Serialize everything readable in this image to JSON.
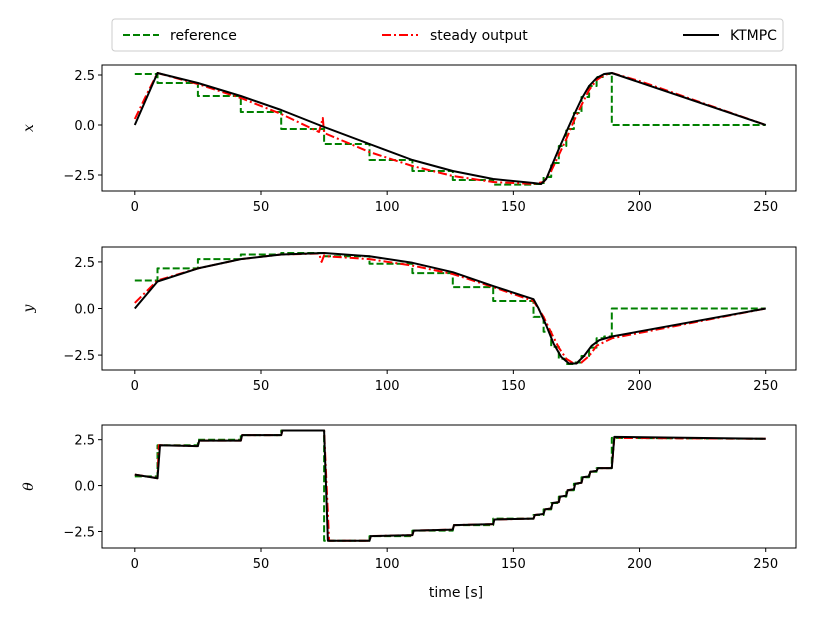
{
  "chart_data": {
    "type": "line",
    "legend": {
      "placement": "top",
      "entries": [
        {
          "label": "reference",
          "color": "#008000",
          "style": "dashed"
        },
        {
          "label": "steady output",
          "color": "#ff0000",
          "style": "dashdot"
        },
        {
          "label": "KTMPC",
          "color": "#000000",
          "style": "solid"
        }
      ]
    },
    "xlabel": "time [s]",
    "xlim": [
      -13,
      262
    ],
    "xticks": [
      0,
      50,
      100,
      150,
      200,
      250
    ],
    "grid": false,
    "subplots": [
      {
        "ylabel": "x",
        "ylim": [
          -3.3,
          3.0
        ],
        "yticks": [
          2.5,
          0.0,
          -2.5
        ],
        "yticklabels": [
          "2.5",
          "0.0",
          "−2.5"
        ],
        "series": [
          {
            "name": "reference",
            "x": [
              0,
              9,
              9,
              25,
              25,
              42,
              42,
              58,
              58,
              75,
              75,
              93,
              93,
              110,
              110,
              126,
              126,
              142,
              142,
              158,
              158,
              162,
              162,
              165,
              165,
              168,
              168,
              171,
              171,
              174,
              174,
              177,
              177,
              180,
              180,
              183,
              183,
              186,
              186,
              189,
              189,
              250
            ],
            "y": [
              2.55,
              2.55,
              2.1,
              2.1,
              1.45,
              1.45,
              0.65,
              0.65,
              -0.2,
              -0.2,
              -0.95,
              -0.95,
              -1.75,
              -1.75,
              -2.3,
              -2.3,
              -2.75,
              -2.75,
              -2.98,
              -2.98,
              -2.95,
              -2.95,
              -2.6,
              -2.6,
              -1.9,
              -1.9,
              -1.05,
              -1.05,
              -0.2,
              -0.2,
              0.6,
              0.6,
              1.4,
              1.4,
              1.95,
              1.95,
              2.4,
              2.4,
              2.55,
              2.55,
              0.0,
              0.0
            ]
          },
          {
            "name": "steady output",
            "x": [
              0,
              5,
              9,
              25,
              42,
              58,
              73,
              74.5,
              75,
              76,
              93,
              110,
              126,
              142,
              158,
              162,
              165,
              168,
              171,
              174,
              177,
              180,
              183,
              186,
              189,
              200,
              250
            ],
            "y": [
              0.3,
              1.6,
              2.6,
              2.05,
              1.35,
              0.55,
              -0.35,
              0.35,
              -0.4,
              -0.45,
              -1.35,
              -2.05,
              -2.55,
              -2.85,
              -2.95,
              -2.85,
              -2.3,
              -1.5,
              -0.7,
              0.2,
              1.0,
              1.75,
              2.25,
              2.5,
              2.6,
              2.2,
              0.0
            ]
          },
          {
            "name": "KTMPC",
            "x": [
              0,
              9,
              25,
              42,
              58,
              75,
              93,
              110,
              126,
              142,
              158,
              161,
              163,
              165,
              168,
              171,
              174,
              177,
              180,
              183,
              186,
              189,
              250
            ],
            "y": [
              0.0,
              2.6,
              2.1,
              1.45,
              0.75,
              -0.1,
              -0.95,
              -1.75,
              -2.3,
              -2.7,
              -2.9,
              -2.95,
              -2.7,
              -2.1,
              -1.2,
              -0.35,
              0.5,
              1.3,
              1.95,
              2.35,
              2.55,
              2.6,
              0.0
            ]
          }
        ]
      },
      {
        "ylabel": "y",
        "ylim": [
          -3.3,
          3.3
        ],
        "yticks": [
          2.5,
          0.0,
          -2.5
        ],
        "yticklabels": [
          "2.5",
          "0.0",
          "−2.5"
        ],
        "series": [
          {
            "name": "reference",
            "x": [
              0,
              9,
              9,
              25,
              25,
              42,
              42,
              58,
              58,
              75,
              75,
              93,
              93,
              110,
              110,
              126,
              126,
              142,
              142,
              158,
              158,
              162,
              162,
              165,
              165,
              168,
              168,
              171,
              171,
              174,
              174,
              177,
              177,
              180,
              180,
              183,
              183,
              186,
              186,
              189,
              189,
              250
            ],
            "y": [
              1.5,
              1.5,
              2.15,
              2.15,
              2.65,
              2.65,
              2.9,
              2.9,
              2.98,
              2.98,
              2.8,
              2.8,
              2.4,
              2.4,
              1.9,
              1.9,
              1.15,
              1.15,
              0.4,
              0.4,
              -0.45,
              -0.45,
              -1.25,
              -1.25,
              -2.05,
              -2.05,
              -2.7,
              -2.7,
              -2.98,
              -2.98,
              -2.9,
              -2.9,
              -2.55,
              -2.55,
              -2.1,
              -2.1,
              -1.6,
              -1.6,
              -1.5,
              -1.5,
              0.0,
              0.0
            ]
          },
          {
            "name": "steady output",
            "x": [
              0,
              9,
              25,
              42,
              58,
              73,
              74,
              75,
              76,
              93,
              110,
              126,
              142,
              158,
              162,
              165,
              168,
              171,
              174,
              177,
              180,
              183,
              189,
              250
            ],
            "y": [
              0.3,
              1.5,
              2.15,
              2.65,
              2.9,
              2.95,
              2.5,
              2.85,
              2.8,
              2.65,
              2.3,
              1.85,
              1.15,
              0.4,
              -0.45,
              -1.3,
              -2.1,
              -2.7,
              -2.95,
              -2.9,
              -2.55,
              -2.0,
              -1.6,
              0.0
            ]
          },
          {
            "name": "KTMPC",
            "x": [
              0,
              9,
              25,
              42,
              58,
              75,
              93,
              110,
              126,
              142,
              158,
              160,
              163,
              166,
              169,
              172,
              175,
              178,
              181,
              184,
              189,
              250
            ],
            "y": [
              0.0,
              1.45,
              2.15,
              2.65,
              2.9,
              2.98,
              2.8,
              2.45,
              1.95,
              1.2,
              0.5,
              0.0,
              -0.9,
              -1.9,
              -2.6,
              -2.95,
              -2.95,
              -2.55,
              -2.0,
              -1.7,
              -1.5,
              0.0
            ]
          }
        ]
      },
      {
        "ylabel": "θ",
        "ylim": [
          -3.4,
          3.3
        ],
        "yticks": [
          2.5,
          0.0,
          -2.5
        ],
        "yticklabels": [
          "2.5",
          "0.0",
          "−2.5"
        ],
        "series": [
          {
            "name": "reference",
            "x": [
              0,
              9,
              9,
              25,
              25,
              42,
              42,
              58,
              58,
              75,
              75,
              93,
              93,
              110,
              110,
              126,
              126,
              142,
              142,
              158,
              158,
              162,
              162,
              165,
              165,
              168,
              168,
              171,
              171,
              174,
              174,
              177,
              177,
              180,
              180,
              183,
              183,
              186,
              186,
              189,
              189,
              250
            ],
            "y": [
              0.5,
              0.5,
              2.2,
              2.2,
              2.5,
              2.5,
              2.75,
              2.75,
              3.0,
              3.0,
              -3.0,
              -3.0,
              -2.75,
              -2.75,
              -2.45,
              -2.45,
              -2.15,
              -2.15,
              -1.8,
              -1.8,
              -1.6,
              -1.6,
              -1.3,
              -1.3,
              -0.95,
              -0.95,
              -0.6,
              -0.6,
              -0.25,
              -0.25,
              0.1,
              0.1,
              0.45,
              0.45,
              0.75,
              0.75,
              0.95,
              0.95,
              0.95,
              0.95,
              2.6,
              2.55
            ]
          },
          {
            "name": "steady output",
            "x": [
              0,
              9,
              9.5,
              25,
              25.5,
              42,
              42.5,
              58,
              58.5,
              75,
              77,
              93,
              93.5,
              110,
              110.5,
              126,
              126.5,
              142,
              142.5,
              158,
              158.5,
              162,
              162.5,
              165,
              165.5,
              168,
              168.5,
              171,
              171.5,
              174,
              174.5,
              177,
              177.5,
              180,
              180.5,
              183,
              183.5,
              186,
              186.5,
              189,
              190,
              250
            ],
            "y": [
              0.6,
              0.4,
              2.2,
              2.15,
              2.45,
              2.45,
              2.75,
              2.75,
              3.0,
              3.0,
              -3.0,
              -3.0,
              -2.75,
              -2.7,
              -2.45,
              -2.4,
              -2.15,
              -2.1,
              -1.85,
              -1.8,
              -1.6,
              -1.55,
              -1.3,
              -1.25,
              -0.95,
              -0.9,
              -0.6,
              -0.55,
              -0.25,
              -0.2,
              0.1,
              0.15,
              0.45,
              0.5,
              0.75,
              0.8,
              0.95,
              0.95,
              0.95,
              0.95,
              2.6,
              2.55
            ]
          },
          {
            "name": "KTMPC",
            "x": [
              0,
              9,
              10,
              25,
              25.5,
              42,
              42.5,
              58,
              58.5,
              75,
              76.5,
              93,
              93.5,
              110,
              110.5,
              126,
              126.5,
              142,
              142.5,
              158,
              158.5,
              162,
              162.5,
              165,
              165.5,
              168,
              168.5,
              171,
              171.5,
              174,
              174.5,
              177,
              177.5,
              180,
              180.5,
              183,
              183.5,
              186,
              186.5,
              189,
              190,
              250
            ],
            "y": [
              0.6,
              0.4,
              2.2,
              2.15,
              2.45,
              2.45,
              2.75,
              2.75,
              3.0,
              3.0,
              -3.0,
              -3.0,
              -2.75,
              -2.7,
              -2.45,
              -2.4,
              -2.15,
              -2.1,
              -1.85,
              -1.8,
              -1.6,
              -1.55,
              -1.3,
              -1.25,
              -0.95,
              -0.9,
              -0.6,
              -0.55,
              -0.25,
              -0.2,
              0.1,
              0.15,
              0.45,
              0.5,
              0.75,
              0.8,
              0.95,
              0.95,
              0.95,
              0.95,
              2.65,
              2.55
            ]
          }
        ]
      }
    ]
  }
}
